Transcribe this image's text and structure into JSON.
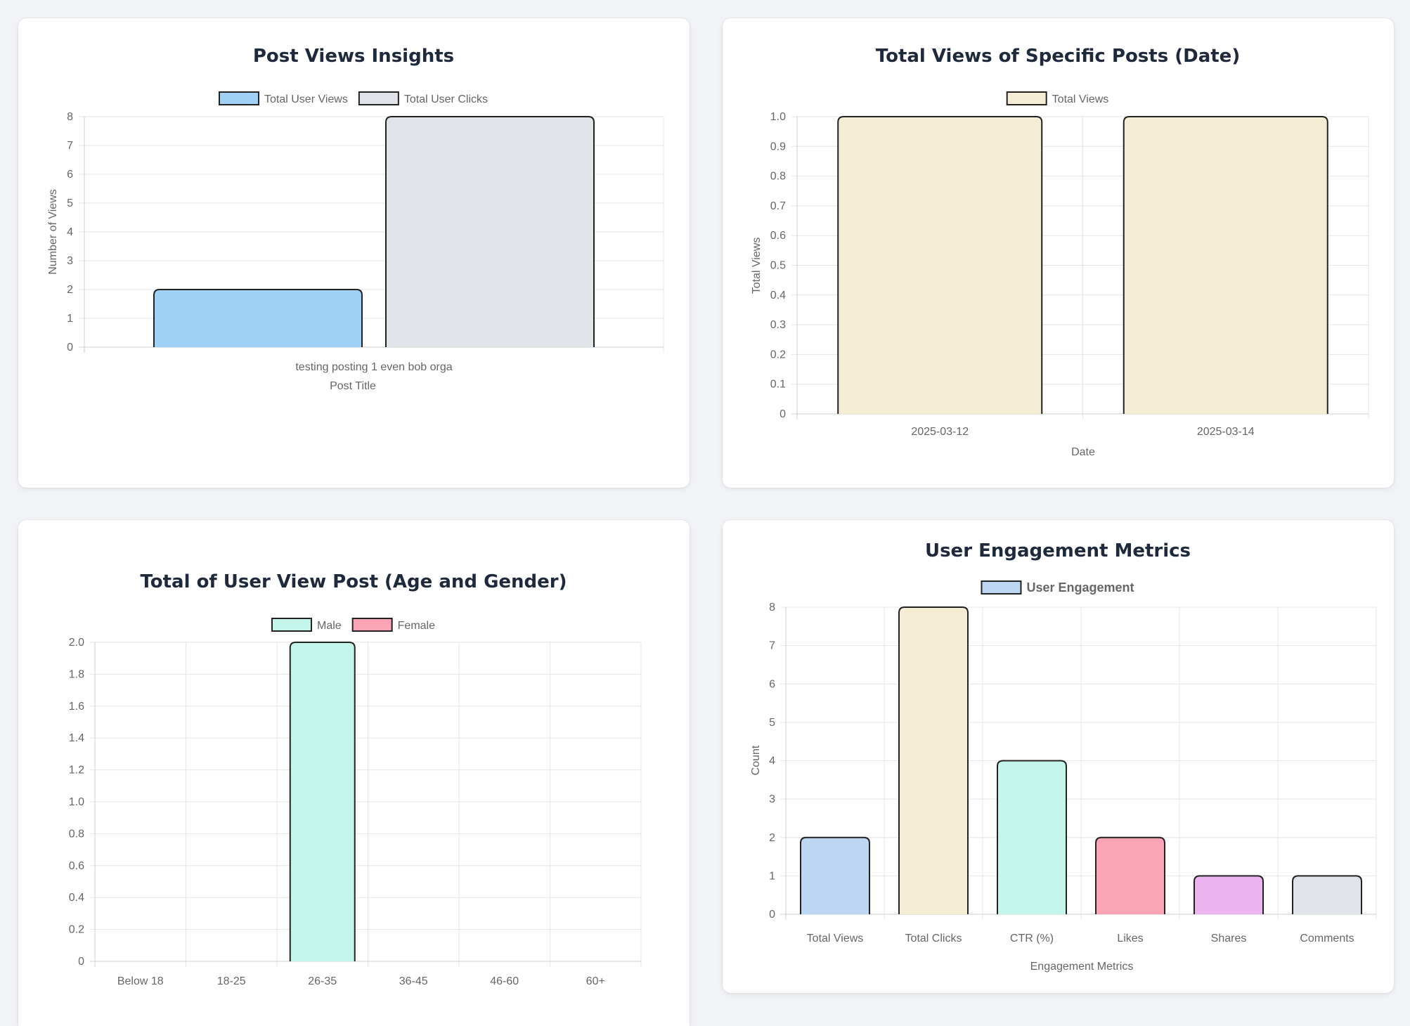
{
  "charts": [
    {
      "type": "bar",
      "title": "Post Views Insights",
      "xlabel": "Post Title",
      "ylabel": "Number of Views",
      "categories": [
        "testing posting 1 even bob orga"
      ],
      "series": [
        {
          "name": "Total User Views",
          "values": [
            2
          ],
          "color": "#9fd0f5"
        },
        {
          "name": "Total User Clicks",
          "values": [
            8
          ],
          "color": "#e0e3e7"
        }
      ],
      "ylim": [
        0,
        8
      ],
      "yticks": [
        "0",
        "1",
        "2",
        "3",
        "4",
        "5",
        "6",
        "7",
        "8"
      ],
      "grid": true,
      "legend": "top"
    },
    {
      "type": "bar",
      "title": "Total Views of Specific Posts (Date)",
      "xlabel": "Date",
      "ylabel": "Total Views",
      "categories": [
        "2025-03-12",
        "2025-03-14"
      ],
      "series": [
        {
          "name": "Total Views",
          "values": [
            1,
            1
          ],
          "color": "#f5edd3"
        }
      ],
      "ylim": [
        0,
        1
      ],
      "yticks": [
        "0",
        "0.1",
        "0.2",
        "0.3",
        "0.4",
        "0.5",
        "0.6",
        "0.7",
        "0.8",
        "0.9",
        "1.0"
      ],
      "grid": true,
      "legend": "top"
    },
    {
      "type": "bar",
      "title": "Total of User View Post (Age and Gender)",
      "xlabel": "",
      "ylabel": "",
      "categories": [
        "Below 18",
        "18-25",
        "26-35",
        "36-45",
        "46-60",
        "60+"
      ],
      "series": [
        {
          "name": "Male",
          "values": [
            0,
            0,
            2,
            0,
            0,
            0
          ],
          "color": "#c3f5eb"
        },
        {
          "name": "Female",
          "values": [
            0,
            0,
            0,
            0,
            0,
            0
          ],
          "color": "#fba4b5"
        }
      ],
      "ylim": [
        0,
        2
      ],
      "yticks": [
        "0",
        "0.2",
        "0.4",
        "0.6",
        "0.8",
        "1.0",
        "1.2",
        "1.4",
        "1.6",
        "1.8",
        "2.0"
      ],
      "grid": true,
      "legend": "top"
    },
    {
      "type": "bar",
      "title": "User Engagement Metrics",
      "xlabel": "Engagement Metrics",
      "ylabel": "Count",
      "categories": [
        "Total Views",
        "Total Clicks",
        "CTR (%)",
        "Likes",
        "Shares",
        "Comments"
      ],
      "series": [
        {
          "name": "User Engagement",
          "values": [
            2,
            8,
            4,
            2,
            1,
            1
          ],
          "colors": [
            "#bdd7f3",
            "#f5edd3",
            "#c3f5eb",
            "#fba4b5",
            "#ecb5ef",
            "#e0e3e7"
          ]
        }
      ],
      "ylim": [
        0,
        8
      ],
      "yticks": [
        "0",
        "1",
        "2",
        "3",
        "4",
        "5",
        "6",
        "7",
        "8"
      ],
      "grid": true,
      "legend": "top"
    }
  ]
}
